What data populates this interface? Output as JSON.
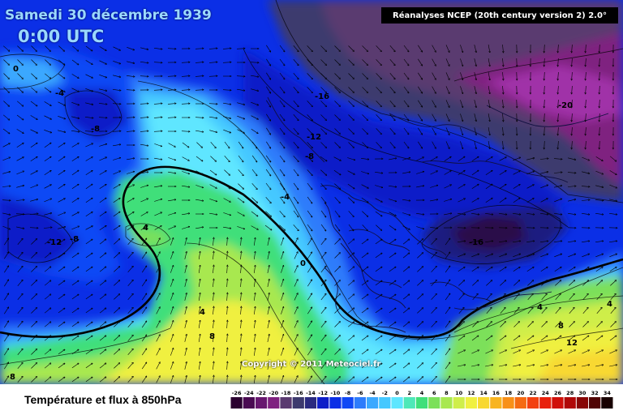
{
  "header": {
    "date": "Samedi 30 décembre 1939",
    "time": "0:00 UTC",
    "source": "Réanalyses NCEP (20th century version 2) 2.0°"
  },
  "copyright": "Copyright © 2011 Meteociel.fr",
  "legend": {
    "title": "Température et flux à 850hPa",
    "ticks": [
      "-26",
      "-24",
      "-22",
      "-20",
      "-18",
      "-16",
      "-14",
      "-12",
      "-10",
      "-8",
      "-6",
      "-4",
      "-2",
      "0",
      "2",
      "4",
      "6",
      "8",
      "10",
      "12",
      "14",
      "16",
      "18",
      "20",
      "22",
      "24",
      "26",
      "28",
      "30",
      "32",
      "34"
    ],
    "colors": [
      "#2b0030",
      "#4a0a52",
      "#68176f",
      "#7f2180",
      "#5a3a70",
      "#3d3a6e",
      "#2a2a80",
      "#0e1ec8",
      "#0b2fe6",
      "#1048f5",
      "#2d7cfb",
      "#3aa8ff",
      "#45c8ff",
      "#5ee6ff",
      "#4ee8b8",
      "#3fdf7a",
      "#7be05a",
      "#a8e850",
      "#cfee4a",
      "#f0f040",
      "#f8d830",
      "#f8b420",
      "#f89018",
      "#f56a12",
      "#f24010",
      "#e8200c",
      "#d0100a",
      "#b00808",
      "#880606",
      "#500303",
      "#180000"
    ]
  },
  "contour_labels": [
    {
      "name": "isotherm-label-0-west",
      "text": "0"
    },
    {
      "name": "isotherm-label-minus4-west",
      "text": "-4"
    },
    {
      "name": "isotherm-label-minus8-north",
      "text": "-8"
    },
    {
      "name": "isotherm-label-minus16-north",
      "text": "-16"
    },
    {
      "name": "isotherm-label-minus12-north",
      "text": "-12"
    },
    {
      "name": "isotherm-label-minus8-center",
      "text": "-8"
    },
    {
      "name": "isotherm-label-minus4-center",
      "text": "-4"
    },
    {
      "name": "isotherm-label-minus20-east",
      "text": "-20"
    },
    {
      "name": "isotherm-label-minus12-west",
      "text": "-12"
    },
    {
      "name": "isotherm-label-minus8-west",
      "text": "-8"
    },
    {
      "name": "isotherm-label-4-mid",
      "text": "4"
    },
    {
      "name": "isotherm-label-0-center",
      "text": "0"
    },
    {
      "name": "isotherm-label-minus16-east",
      "text": "-16"
    },
    {
      "name": "isotherm-label-4-south",
      "text": "4"
    },
    {
      "name": "isotherm-label-8-south",
      "text": "8"
    },
    {
      "name": "isotherm-label-8-southwest",
      "text": "8"
    },
    {
      "name": "isotherm-label-4-east",
      "text": "4"
    },
    {
      "name": "isotherm-label-4-far-east",
      "text": "4"
    },
    {
      "name": "isotherm-label-8-east",
      "text": "8"
    },
    {
      "name": "isotherm-label-12-southeast",
      "text": "12"
    }
  ]
}
